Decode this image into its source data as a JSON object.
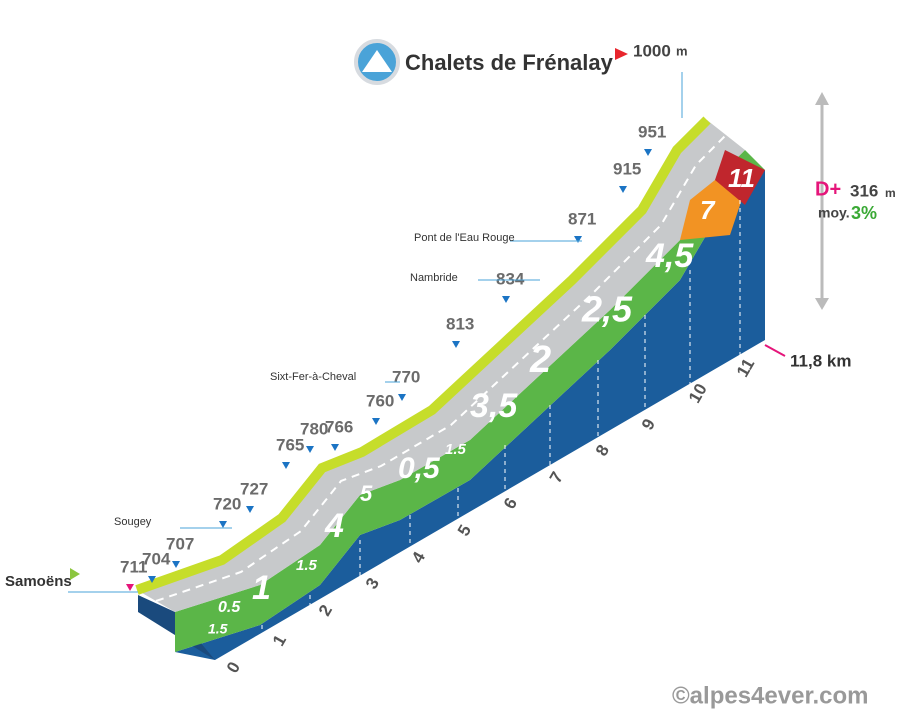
{
  "title": "Chalets de Frénalay",
  "summit": {
    "altitude": "1000",
    "unit": "m"
  },
  "start": {
    "name": "Samoëns"
  },
  "altitudes": [
    "711",
    "704",
    "707",
    "720",
    "727",
    "765",
    "780",
    "766",
    "760",
    "770",
    "813",
    "834",
    "871",
    "915",
    "951"
  ],
  "places": [
    "Sougey",
    "Sixt-Fer-à-Cheval",
    "Nambride",
    "Pont de l'Eau Rouge"
  ],
  "summary": {
    "gain_label": "D+",
    "gain": "316",
    "gain_unit": "m",
    "avg_label": "moy.",
    "avg": "3%"
  },
  "distance": "11,8 km",
  "km_ticks": [
    "0",
    "1",
    "2",
    "3",
    "4",
    "5",
    "6",
    "7",
    "8",
    "9",
    "10",
    "11"
  ],
  "gradients": [
    "1.5",
    "0.5",
    "1",
    "1.5",
    "4",
    "5",
    "0,5",
    "1.5",
    "3,5",
    "2",
    "2,5",
    "4,5",
    "7",
    "11"
  ],
  "copyright": "©alpes4ever.com"
}
